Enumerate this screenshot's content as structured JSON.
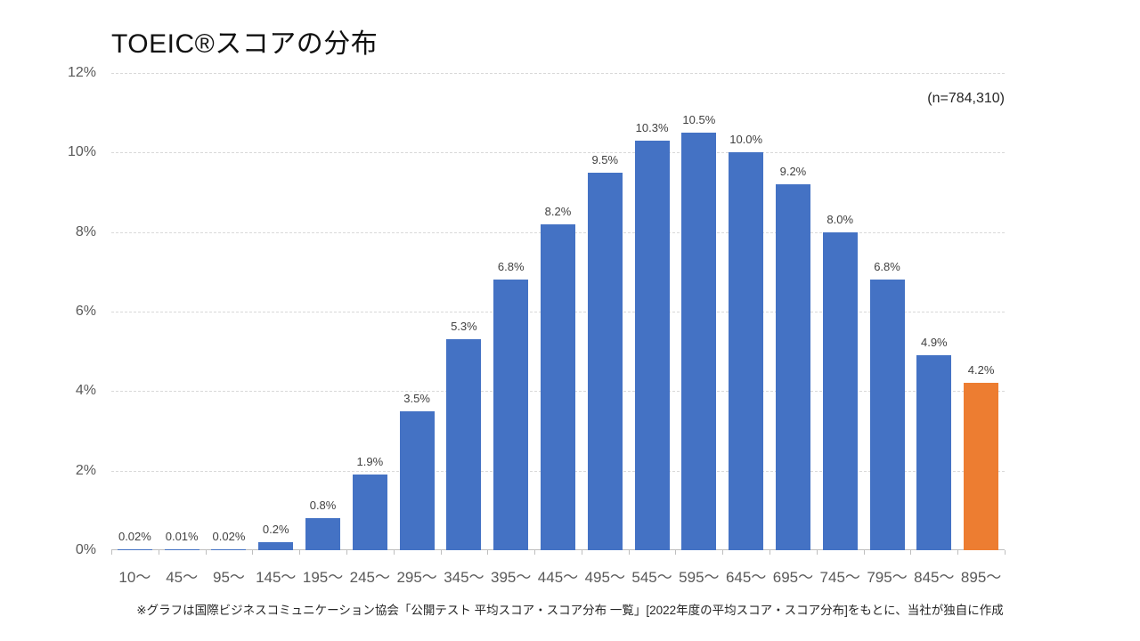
{
  "title": "TOEIC®スコアの分布",
  "sample_size_label": "(n=784,310)",
  "footnote": "※グラフは国際ビジネスコミュニケーション協会「公開テスト 平均スコア・スコア分布 一覧」[2022年度の平均スコア・スコア分布]をもとに、当社が独自に作成",
  "chart_data": {
    "type": "bar",
    "title": "TOEIC®スコアの分布",
    "categories": [
      "10〜",
      "45〜",
      "95〜",
      "145〜",
      "195〜",
      "245〜",
      "295〜",
      "345〜",
      "395〜",
      "445〜",
      "495〜",
      "545〜",
      "595〜",
      "645〜",
      "695〜",
      "745〜",
      "795〜",
      "845〜",
      "895〜"
    ],
    "values": [
      0.02,
      0.01,
      0.02,
      0.2,
      0.8,
      1.9,
      3.5,
      5.3,
      6.8,
      8.2,
      9.5,
      10.3,
      10.5,
      10.0,
      9.2,
      8.0,
      6.8,
      4.9,
      4.2
    ],
    "data_labels": [
      "0.02%",
      "0.01%",
      "0.02%",
      "0.2%",
      "0.8%",
      "1.9%",
      "3.5%",
      "5.3%",
      "6.8%",
      "8.2%",
      "9.5%",
      "10.3%",
      "10.5%",
      "10.0%",
      "9.2%",
      "8.0%",
      "6.8%",
      "4.9%",
      "4.2%"
    ],
    "xlabel": "",
    "ylabel": "",
    "ylim": [
      0,
      12
    ],
    "y_tick_labels": [
      "0%",
      "2%",
      "4%",
      "6%",
      "8%",
      "10%",
      "12%"
    ],
    "y_tick_values": [
      0,
      2,
      4,
      6,
      8,
      10,
      12
    ],
    "grid": true,
    "legend": "none",
    "annotation": "(n=784,310)",
    "colors": {
      "bar": "#4472C4",
      "highlight_bar": "#ED7D31",
      "data_label": "#404040",
      "axis_text": "#595959",
      "gridline": "#D9D9D9",
      "axis_line": "#BFBFBF",
      "title_text": "#111111"
    },
    "highlight_index": 18
  }
}
